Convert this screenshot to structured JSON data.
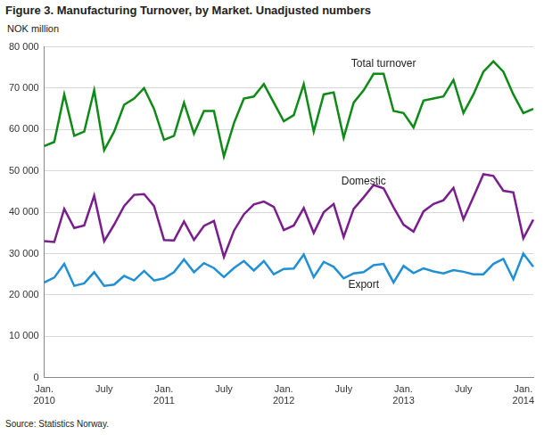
{
  "chart_data": {
    "type": "line",
    "title": "Figure 3. Manufacturing Turnover, by Market. Unadjusted numbers",
    "y_label": "NOK million",
    "source": "Source: Statistics Norway.",
    "categories": [
      "Jan. 2010",
      null,
      null,
      null,
      null,
      null,
      "July",
      null,
      null,
      null,
      null,
      null,
      "Jan. 2011",
      null,
      null,
      null,
      null,
      null,
      "July",
      null,
      null,
      null,
      null,
      null,
      "Jan. 2012",
      null,
      null,
      null,
      null,
      null,
      "July",
      null,
      null,
      null,
      null,
      null,
      "Jan. 2013",
      null,
      null,
      null,
      null,
      null,
      "July",
      null,
      null,
      null,
      null,
      null,
      "Jan. 2014",
      null
    ],
    "series": [
      {
        "name": "Total turnover",
        "color": "#0e8a16",
        "values": [
          56000,
          57000,
          68500,
          58500,
          59500,
          69500,
          55000,
          59500,
          66000,
          67500,
          70000,
          65000,
          57500,
          58500,
          66500,
          59000,
          64500,
          64500,
          53500,
          61500,
          67500,
          68000,
          71000,
          66500,
          62000,
          63500,
          71000,
          59500,
          68500,
          69000,
          58000,
          66500,
          69500,
          73500,
          73500,
          64500,
          64000,
          60500,
          67000,
          67500,
          68000,
          72000,
          64000,
          68500,
          74000,
          76500,
          74000,
          68500,
          64000,
          65000
        ]
      },
      {
        "name": "Domestic",
        "color": "#7a1e8e",
        "values": [
          33000,
          32800,
          40800,
          36200,
          36800,
          44000,
          33000,
          37000,
          41500,
          44200,
          44400,
          41500,
          33300,
          33200,
          37800,
          33300,
          36700,
          37900,
          29200,
          35500,
          39500,
          41900,
          42600,
          41300,
          35700,
          36800,
          41000,
          35000,
          40000,
          42000,
          34000,
          40800,
          43600,
          46600,
          45800,
          41200,
          37000,
          35300,
          40200,
          42000,
          42900,
          45900,
          38300,
          43700,
          49200,
          48800,
          45200,
          44800,
          33700,
          38200
        ]
      },
      {
        "name": "Export",
        "color": "#1f8fd6",
        "values": [
          23000,
          24200,
          27500,
          22200,
          22800,
          25500,
          22200,
          22500,
          24600,
          23500,
          25800,
          23500,
          24000,
          25500,
          28600,
          25500,
          27700,
          26500,
          24300,
          26500,
          28200,
          25900,
          28200,
          25000,
          26300,
          26400,
          29800,
          24300,
          28000,
          26800,
          24000,
          25200,
          25500,
          27200,
          27500,
          23000,
          27000,
          25300,
          26400,
          25700,
          25200,
          26000,
          25600,
          25000,
          25000,
          27500,
          28700,
          23800,
          30000,
          26800
        ]
      }
    ],
    "ylim": [
      0,
      80000
    ],
    "yticks": [
      0,
      {
        "value": 10000,
        "label": "10 000"
      },
      {
        "value": 20000,
        "label": "20 000"
      },
      {
        "value": 30000,
        "label": "30 000"
      },
      {
        "value": 40000,
        "label": "40 000"
      },
      {
        "value": 50000,
        "label": "50 000"
      },
      {
        "value": 60000,
        "label": "60 000"
      },
      {
        "value": 70000,
        "label": "70 000"
      },
      {
        "value": 80000,
        "label": "80 000"
      }
    ],
    "grid": true
  }
}
